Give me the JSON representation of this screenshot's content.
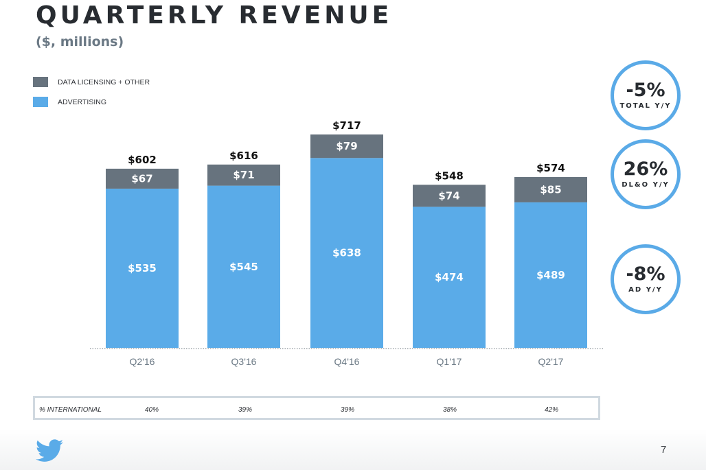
{
  "header": {
    "title": "QUARTERLY REVENUE",
    "subtitle": "($, millions)"
  },
  "legend": [
    {
      "label": "DATA LICENSING + OTHER",
      "color": "#67737e"
    },
    {
      "label": "ADVERTISING",
      "color": "#5aabe8"
    }
  ],
  "kpis": [
    {
      "value": "-5%",
      "label": "TOTAL Y/Y"
    },
    {
      "value": "26%",
      "label": "DL&O Y/Y"
    },
    {
      "value": "-8%",
      "label": "AD Y/Y"
    }
  ],
  "international": {
    "label": "% INTERNATIONAL",
    "values": [
      "40%",
      "39%",
      "39%",
      "38%",
      "42%"
    ]
  },
  "footer": {
    "logo": "twitter-bird-icon",
    "page_number": "7"
  },
  "colors": {
    "advertising": "#5aabe8",
    "data_licensing": "#67737e",
    "kpi_ring": "#5aaae7"
  },
  "chart_data": {
    "type": "bar",
    "stacked": true,
    "title": "QUARTERLY REVENUE",
    "subtitle": "($, millions)",
    "xlabel": "",
    "ylabel": "",
    "ylim": [
      0,
      717
    ],
    "grid": false,
    "legend_position": "top-left",
    "categories": [
      "Q2'16",
      "Q3'16",
      "Q4'16",
      "Q1'17",
      "Q2'17"
    ],
    "series": [
      {
        "name": "ADVERTISING",
        "values": [
          535,
          545,
          638,
          474,
          489
        ],
        "labels": [
          "$535",
          "$545",
          "$638",
          "$474",
          "$489"
        ]
      },
      {
        "name": "DATA LICENSING + OTHER",
        "values": [
          67,
          71,
          79,
          74,
          85
        ],
        "labels": [
          "$67",
          "$71",
          "$79",
          "$74",
          "$85"
        ]
      }
    ],
    "totals": [
      602,
      616,
      717,
      548,
      574
    ],
    "total_labels": [
      "$602",
      "$616",
      "$717",
      "$548",
      "$574"
    ]
  }
}
